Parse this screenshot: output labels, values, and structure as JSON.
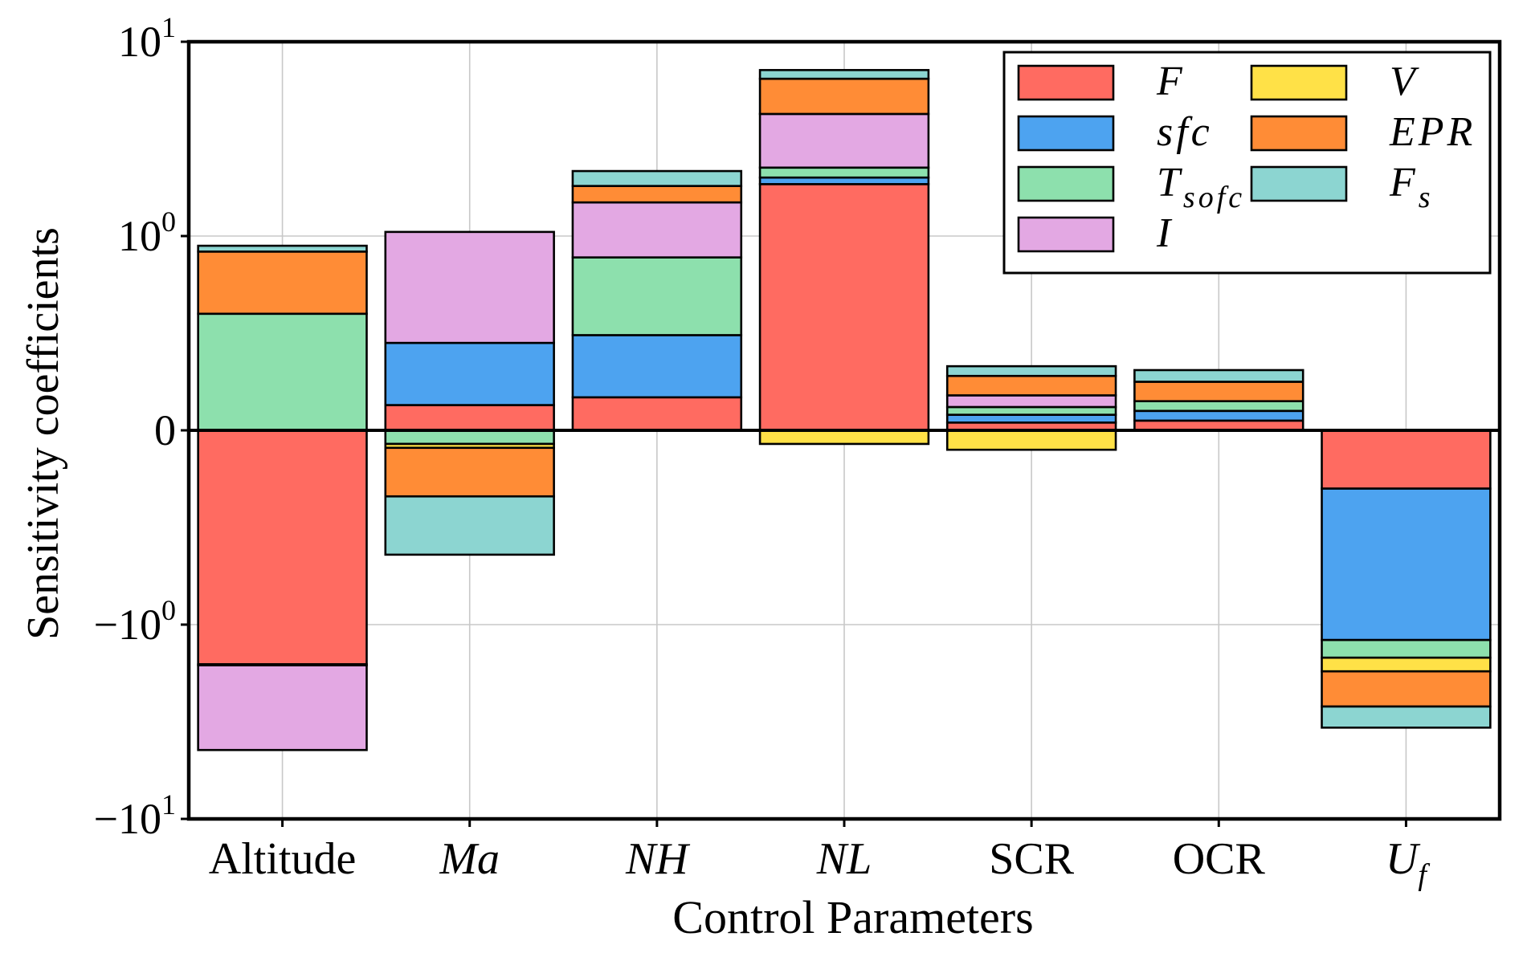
{
  "chart_data": {
    "type": "bar",
    "stacked": true,
    "y_scale": "symlog",
    "xlabel": "Control Parameters",
    "ylabel": "Sensitivity coefficients",
    "categories": [
      "Altitude",
      "Ma",
      "NH",
      "NL",
      "SCR",
      "OCR",
      "U_f"
    ],
    "y_ticks": [
      "10^1",
      "10^0",
      "0",
      "-10^0",
      "-10^1"
    ],
    "ylim": [
      -10,
      10
    ],
    "grid": true,
    "legend_position": "top-right",
    "series": [
      {
        "name": "F",
        "color": "#ff6b61",
        "values": [
          -1.6,
          0.13,
          0.17,
          1.85,
          0.04,
          0.05,
          -0.3
        ]
      },
      {
        "name": "sfc",
        "color": "#4da3f0",
        "values": [
          -0.02,
          0.32,
          0.32,
          0.15,
          0.04,
          0.05,
          -0.9
        ]
      },
      {
        "name": "T_sofc",
        "color": "#8de0ad",
        "values": [
          0.6,
          -0.07,
          0.4,
          0.25,
          0.04,
          0.05,
          -0.28
        ]
      },
      {
        "name": "I",
        "color": "#e3a8e3",
        "values": [
          -2.8,
          0.6,
          0.6,
          2.0,
          0.06,
          0.0,
          0.0
        ]
      },
      {
        "name": "V",
        "color": "#ffe147",
        "values": [
          0.0,
          -0.02,
          0.0,
          -0.07,
          -0.1,
          0.0,
          -0.26
        ]
      },
      {
        "name": "EPR",
        "color": "#ff8c36",
        "values": [
          0.32,
          -0.25,
          0.32,
          2.2,
          0.1,
          0.1,
          -0.9
        ]
      },
      {
        "name": "F_s",
        "color": "#8cd5d1",
        "values": [
          0.03,
          -0.3,
          0.35,
          0.7,
          0.05,
          0.06,
          -0.75
        ]
      }
    ]
  }
}
